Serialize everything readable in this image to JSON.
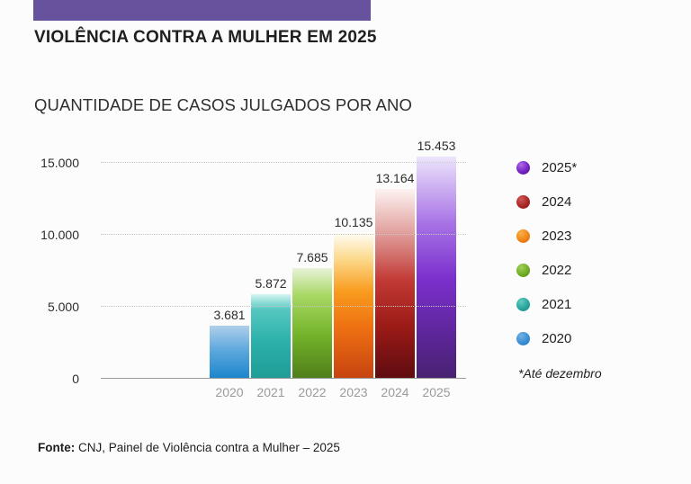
{
  "header": {
    "title": "VIOLÊNCIA CONTRA A MULHER EM 2025",
    "accent_color": "#67529e"
  },
  "chart_data": {
    "type": "bar",
    "title": "QUANTIDADE DE CASOS JULGADOS POR ANO",
    "categories": [
      "2020",
      "2021",
      "2022",
      "2023",
      "2024",
      "2025"
    ],
    "values": [
      3681,
      5872,
      7685,
      10135,
      13164,
      15453
    ],
    "value_labels": [
      "3.681",
      "5.872",
      "7.685",
      "10.135",
      "13.164",
      "15.453"
    ],
    "ylim": [
      0,
      15000
    ],
    "yticks": [
      {
        "value": 0,
        "label": "0"
      },
      {
        "value": 5000,
        "label": "5.000"
      },
      {
        "value": 10000,
        "label": "10.000"
      },
      {
        "value": 15000,
        "label": "15.000"
      }
    ],
    "grid": "horizontal dotted",
    "legend_position": "right",
    "legend_labels": [
      "2025*",
      "2024",
      "2023",
      "2022",
      "2021",
      "2020"
    ],
    "legend_note": "*Até dezembro",
    "series_colors": [
      {
        "year": "2020",
        "bar_gradient": [
          "#aecfeb 0%",
          "#5fa9dd 45%",
          "#1a85cd 100%"
        ],
        "sphere": {
          "highlight": "#74b2e2",
          "mid": "#3a8ed4",
          "edge": "#1f74bd"
        }
      },
      {
        "year": "2021",
        "bar_gradient": [
          "#d4f5f1 0%",
          "#55c8c0 18%",
          "#2db1ab 55%",
          "#1f9c96 100%"
        ],
        "sphere": {
          "highlight": "#62ccc4",
          "mid": "#28a49d",
          "edge": "#1b8a85"
        }
      },
      {
        "year": "2022",
        "bar_gradient": [
          "#e8f3da 0%",
          "#a8d764 25%",
          "#74b42a 60%",
          "#507d1b 100%"
        ],
        "sphere": {
          "highlight": "#a3cf5f",
          "mid": "#6fae24",
          "edge": "#55821c"
        }
      },
      {
        "year": "2023",
        "bar_gradient": [
          "#fffdf4 0%",
          "#fcd98b 18%",
          "#f89c1e 40%",
          "#ee7012 65%",
          "#c64310 100%"
        ],
        "sphere": {
          "highlight": "#f9b04a",
          "mid": "#ef8516",
          "edge": "#d9650e"
        }
      },
      {
        "year": "2024",
        "bar_gradient": [
          "#fdf3f1 0%",
          "#e2a4a1 22%",
          "#c23a35 48%",
          "#9c1b17 72%",
          "#5e0b10 100%"
        ],
        "sphere": {
          "highlight": "#d05858",
          "mid": "#a82626",
          "edge": "#7c1518"
        }
      },
      {
        "year": "2025",
        "bar_gradient": [
          "#ece5fb 0%",
          "#a873e6 30%",
          "#7b30cc 55%",
          "#5b2596 82%",
          "#472270 100%"
        ],
        "sphere": {
          "highlight": "#b06ae8",
          "mid": "#7223c4",
          "edge": "#54148f"
        }
      }
    ]
  },
  "footer": {
    "label": "Fonte:",
    "text": " CNJ, Painel de Violência contra a Mulher – 2025"
  }
}
